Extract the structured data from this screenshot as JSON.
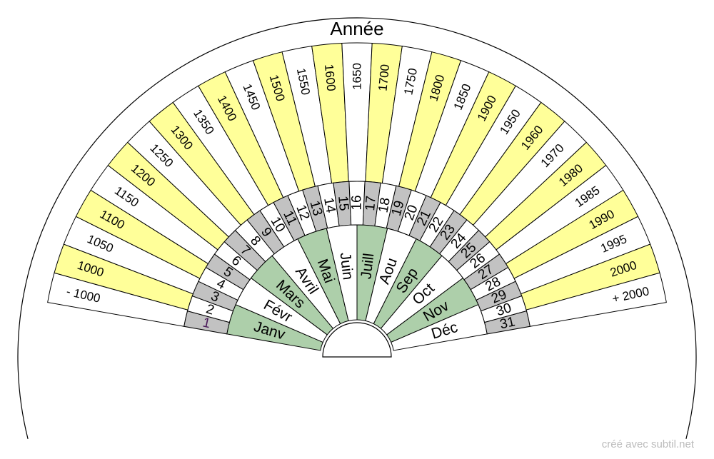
{
  "title": "Année",
  "credit": "créé avec subtil.net",
  "colors": {
    "yellow": "#ffff99",
    "green": "#adcfaa",
    "gray": "#c2c2c2",
    "white": "#ffffff",
    "stroke": "#000000",
    "day_one_text": "#4a1a5a"
  },
  "rings": {
    "years": {
      "labels": [
        "- 1000",
        "1000",
        "1050",
        "1100",
        "1150",
        "1200",
        "1250",
        "1300",
        "1350",
        "1400",
        "1450",
        "1500",
        "1550",
        "1600",
        "1650",
        "1700",
        "1750",
        "1800",
        "1850",
        "1900",
        "1950",
        "1960",
        "1970",
        "1980",
        "1985",
        "1990",
        "1995",
        "2000",
        "+ 2000"
      ],
      "fills": [
        "white",
        "yellow",
        "white",
        "yellow",
        "white",
        "yellow",
        "white",
        "yellow",
        "white",
        "yellow",
        "white",
        "yellow",
        "white",
        "yellow",
        "white",
        "yellow",
        "white",
        "yellow",
        "white",
        "yellow",
        "white",
        "yellow",
        "white",
        "yellow",
        "white",
        "yellow",
        "white",
        "yellow",
        "white"
      ]
    },
    "days": {
      "labels": [
        "1",
        "2",
        "3",
        "4",
        "5",
        "6",
        "7",
        "8",
        "9",
        "10",
        "11",
        "12",
        "13",
        "14",
        "15",
        "16",
        "17",
        "18",
        "19",
        "20",
        "21",
        "22",
        "23",
        "24",
        "25",
        "26",
        "27",
        "28",
        "29",
        "30",
        "31"
      ],
      "fills": [
        "gray",
        "white",
        "gray",
        "white",
        "gray",
        "white",
        "gray",
        "white",
        "gray",
        "white",
        "gray",
        "white",
        "gray",
        "white",
        "gray",
        "white",
        "gray",
        "white",
        "gray",
        "white",
        "gray",
        "white",
        "gray",
        "white",
        "gray",
        "white",
        "gray",
        "white",
        "gray",
        "white",
        "gray"
      ]
    },
    "months": {
      "labels": [
        "Janv",
        "Févr",
        "Mars",
        "Avril",
        "Mai",
        "Juin",
        "Juill",
        "Aou",
        "Sep",
        "Oct",
        "Nov",
        "Déc"
      ],
      "fills": [
        "green",
        "white",
        "green",
        "white",
        "green",
        "white",
        "green",
        "white",
        "green",
        "white",
        "green",
        "white"
      ]
    }
  }
}
